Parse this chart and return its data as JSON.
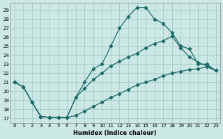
{
  "xlabel": "Humidex (Indice chaleur)",
  "bg_color": "#cce8e4",
  "grid_color": "#aacfcb",
  "line_color": "#1a6b6b",
  "xlim": [
    -0.5,
    23.5
  ],
  "ylim": [
    16.5,
    29.8
  ],
  "xticks": [
    0,
    1,
    2,
    3,
    4,
    5,
    6,
    7,
    8,
    9,
    10,
    11,
    12,
    13,
    14,
    15,
    16,
    17,
    18,
    19,
    20,
    21,
    22,
    23
  ],
  "yticks": [
    17,
    18,
    19,
    20,
    21,
    22,
    23,
    24,
    25,
    26,
    27,
    28,
    29
  ],
  "line1_x": [
    0,
    1,
    2,
    3,
    4,
    5,
    6,
    7,
    8,
    9,
    10,
    11,
    12,
    13,
    14,
    15,
    16,
    17,
    18,
    19,
    20,
    21,
    22,
    23
  ],
  "line1_y": [
    21.0,
    20.5,
    18.8,
    17.2,
    17.1,
    17.1,
    17.1,
    19.3,
    21.0,
    22.5,
    23.0,
    25.0,
    27.0,
    28.3,
    29.3,
    29.3,
    28.0,
    27.5,
    26.5,
    25.0,
    24.7,
    23.0,
    23.0,
    22.3
  ],
  "line2_x": [
    0,
    1,
    2,
    3,
    4,
    5,
    6,
    7,
    8,
    9,
    10,
    11,
    12,
    13,
    14,
    15,
    16,
    17,
    18,
    19,
    20,
    21,
    22,
    23
  ],
  "line2_y": [
    21.0,
    20.5,
    18.8,
    17.2,
    17.1,
    17.1,
    17.1,
    19.3,
    20.3,
    21.3,
    22.0,
    22.8,
    23.3,
    23.8,
    24.2,
    24.8,
    25.3,
    25.6,
    26.1,
    24.8,
    23.8,
    23.2,
    22.8,
    22.3
  ],
  "line3_x": [
    0,
    1,
    2,
    3,
    4,
    5,
    6,
    7,
    8,
    9,
    10,
    11,
    12,
    13,
    14,
    15,
    16,
    17,
    18,
    19,
    20,
    21,
    22,
    23
  ],
  "line3_y": [
    21.0,
    20.5,
    18.8,
    17.2,
    17.1,
    17.1,
    17.1,
    17.3,
    17.8,
    18.3,
    18.8,
    19.3,
    19.7,
    20.2,
    20.7,
    21.0,
    21.3,
    21.7,
    22.0,
    22.2,
    22.4,
    22.5,
    22.7,
    22.3
  ]
}
